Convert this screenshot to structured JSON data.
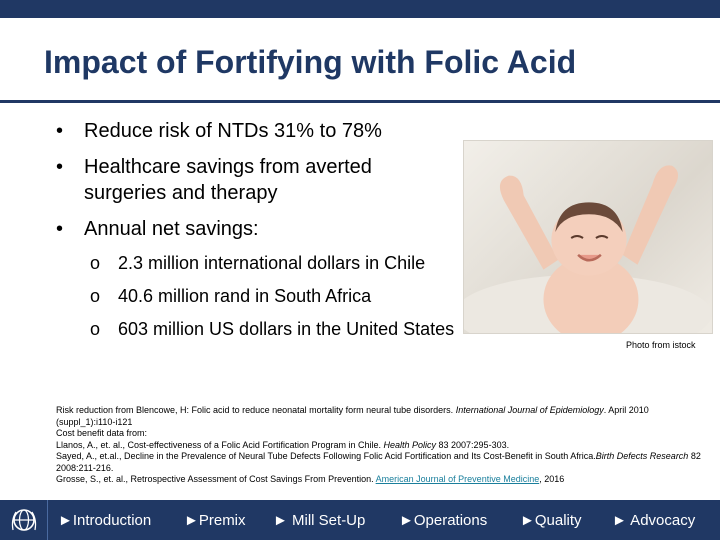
{
  "slide": {
    "title": "Impact of Fortifying with Folic Acid",
    "bullets": [
      "Reduce risk of NTDs 31% to 78%",
      "Healthcare savings from averted surgeries and therapy",
      "Annual net savings:"
    ],
    "sub_bullets": [
      "2.3 million international dollars in Chile",
      "40.6 million rand in South Africa",
      "603 million US dollars in the United States"
    ],
    "photo_credit": "Photo from istock",
    "references": {
      "r1_prefix": "Risk reduction from Blencowe, H: Folic acid to reduce neonatal mortality form neural tube disorders. ",
      "r1_journal": "International Journal of Epidemiology",
      "r1_suffix": ". April 2010 (suppl_1):i110-i121",
      "r2": "Cost benefit data from:",
      "r3_prefix": "Llanos, A., et. al., Cost-effectiveness of a Folic Acid Fortification Program in Chile. ",
      "r3_journal": "Health Policy",
      "r3_suffix": " 83 2007:295-303.",
      "r4_prefix": "Sayed, A., et.al., Decline in the Prevalence of Neural Tube Defects Following Folic Acid Fortification and Its Cost-Benefit in South Africa.",
      "r4_journal": "Birth Defects Research",
      "r4_suffix": " 82 2008:211-216.",
      "r5_prefix": "Grosse, S., et. al., Retrospective Assessment of Cost Savings From Prevention. ",
      "r5_link": "American Journal of Preventive Medicine",
      "r5_suffix": ", 2016"
    }
  },
  "nav": {
    "logo_icon": "globe-wheat-logo-icon",
    "items": [
      "►Introduction",
      "►Premix",
      "► Mill Set-Up",
      "►Operations",
      "►Quality",
      "► Advocacy"
    ]
  },
  "colors": {
    "navy": "#203864",
    "title": "#1F3864",
    "link": "#1a7f9c"
  }
}
